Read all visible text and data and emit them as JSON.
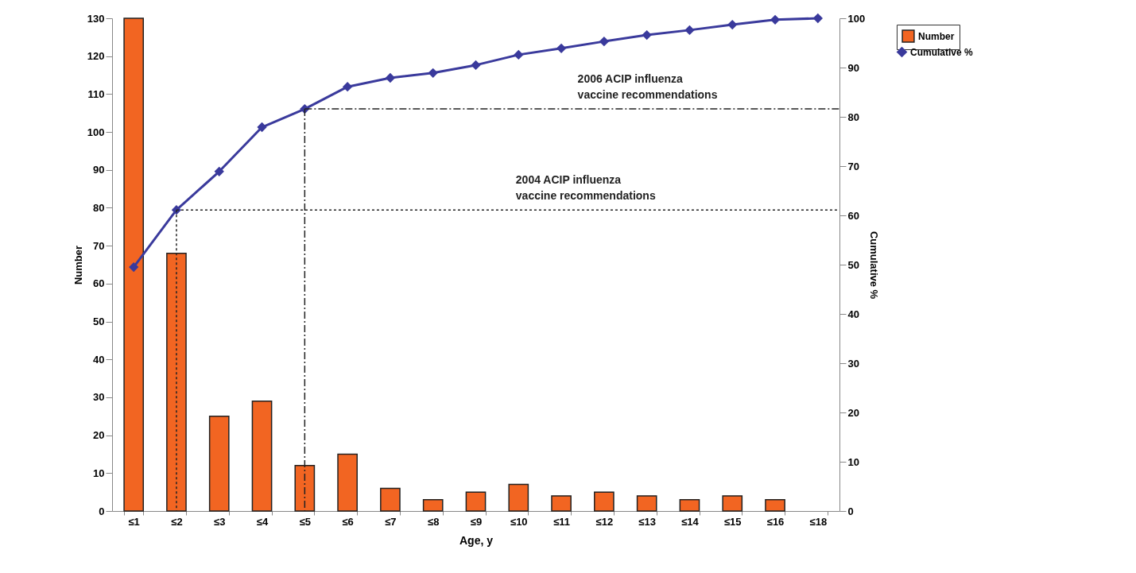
{
  "chart_data": {
    "type": "bar",
    "xlabel": "Age, y",
    "ylabel": "Number",
    "y2label": "Cumulative %",
    "categories": [
      "≤1",
      "≤2",
      "≤3",
      "≤4",
      "≤5",
      "≤6",
      "≤7",
      "≤8",
      "≤9",
      "≤10",
      "≤11",
      "≤12",
      "≤13",
      "≤14",
      "≤15",
      "≤16",
      "≤18"
    ],
    "series": [
      {
        "name": "Number",
        "color": "#f26522",
        "values": [
          130,
          68,
          25,
          29,
          12,
          15,
          6,
          3,
          5,
          7,
          4,
          5,
          4,
          3,
          4,
          3,
          null
        ]
      },
      {
        "name": "Cumulative %",
        "type": "line",
        "axis": "y2",
        "color": "#3a3a9c",
        "marker": "diamond",
        "values": [
          49.5,
          61.1,
          68.9,
          77.9,
          81.6,
          86.1,
          87.9,
          88.9,
          90.5,
          92.6,
          93.9,
          95.3,
          96.6,
          97.6,
          98.7,
          99.7,
          100
        ]
      }
    ],
    "ylim": [
      0,
      130
    ],
    "yticks": [
      0,
      10,
      20,
      30,
      40,
      50,
      60,
      70,
      80,
      90,
      100,
      110,
      120,
      130
    ],
    "y2lim": [
      0,
      100
    ],
    "y2ticks": [
      0,
      10,
      20,
      30,
      40,
      50,
      60,
      70,
      80,
      90,
      100
    ],
    "ref_lines": [
      {
        "axis": "y2",
        "value": 61.1,
        "label": "2004 ACIP influenza\nvaccine recommendations",
        "line_style": "dotted"
      },
      {
        "axis": "y2",
        "value": 81.6,
        "label": "2006 ACIP influenza\nvaccine recommendations",
        "line_style": "dashed"
      },
      {
        "axis": "x",
        "value": "≤2",
        "line_style": "dotted"
      },
      {
        "axis": "x",
        "value": "≤5",
        "line_style": "dashed"
      }
    ],
    "legend": "top right",
    "grid": false
  }
}
